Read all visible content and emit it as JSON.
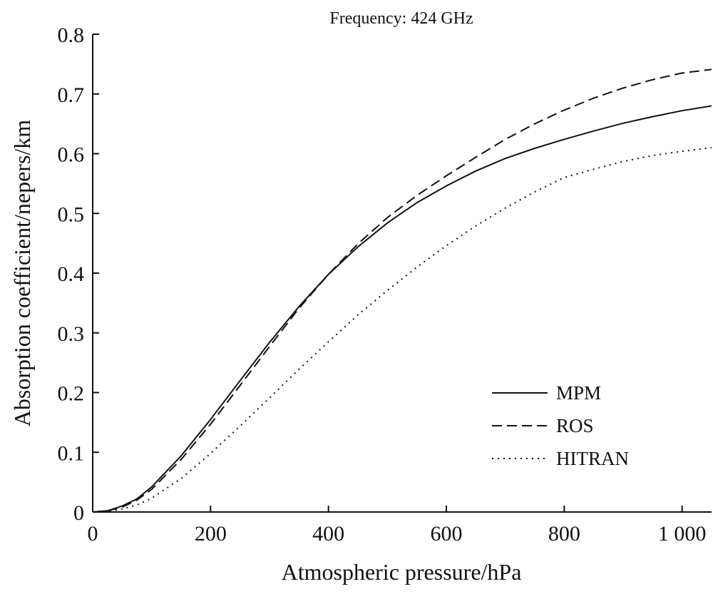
{
  "chart_data": {
    "type": "line",
    "title": "Frequency: 424 GHz",
    "xlabel": "Atmospheric pressure/hPa",
    "ylabel": "Absorption coefficient/nepers/km",
    "xlim": [
      0,
      1050
    ],
    "ylim": [
      0,
      0.8
    ],
    "xticks": [
      0,
      200,
      400,
      600,
      800,
      1000
    ],
    "xtick_labels": [
      "0",
      "200",
      "400",
      "600",
      "800",
      "1 000"
    ],
    "yticks": [
      0,
      0.1,
      0.2,
      0.3,
      0.4,
      0.5,
      0.6,
      0.7,
      0.8
    ],
    "ytick_labels": [
      "0",
      "0.1",
      "0.2",
      "0.3",
      "0.4",
      "0.5",
      "0.6",
      "0.7",
      "0.8"
    ],
    "grid": false,
    "legend_position": "bottom-right",
    "x": [
      0,
      25,
      50,
      75,
      100,
      150,
      200,
      250,
      300,
      350,
      400,
      450,
      500,
      550,
      600,
      650,
      700,
      750,
      800,
      850,
      900,
      950,
      1000,
      1050
    ],
    "series": [
      {
        "name": "MPM",
        "style": "solid",
        "color": "#111111",
        "values": [
          0.0,
          0.002,
          0.01,
          0.022,
          0.042,
          0.094,
          0.155,
          0.22,
          0.284,
          0.344,
          0.398,
          0.444,
          0.484,
          0.518,
          0.546,
          0.571,
          0.592,
          0.609,
          0.624,
          0.638,
          0.651,
          0.662,
          0.672,
          0.68
        ]
      },
      {
        "name": "ROS",
        "style": "dashed",
        "color": "#111111",
        "values": [
          0.0,
          0.002,
          0.008,
          0.02,
          0.038,
          0.088,
          0.147,
          0.212,
          0.277,
          0.341,
          0.398,
          0.449,
          0.493,
          0.53,
          0.563,
          0.594,
          0.624,
          0.65,
          0.673,
          0.693,
          0.71,
          0.724,
          0.735,
          0.741
        ]
      },
      {
        "name": "HITRAN",
        "style": "dotted",
        "color": "#111111",
        "values": [
          0.0,
          0.001,
          0.005,
          0.012,
          0.023,
          0.056,
          0.098,
          0.144,
          0.191,
          0.239,
          0.285,
          0.33,
          0.371,
          0.41,
          0.446,
          0.479,
          0.509,
          0.536,
          0.56,
          0.574,
          0.587,
          0.597,
          0.604,
          0.61
        ]
      }
    ]
  }
}
